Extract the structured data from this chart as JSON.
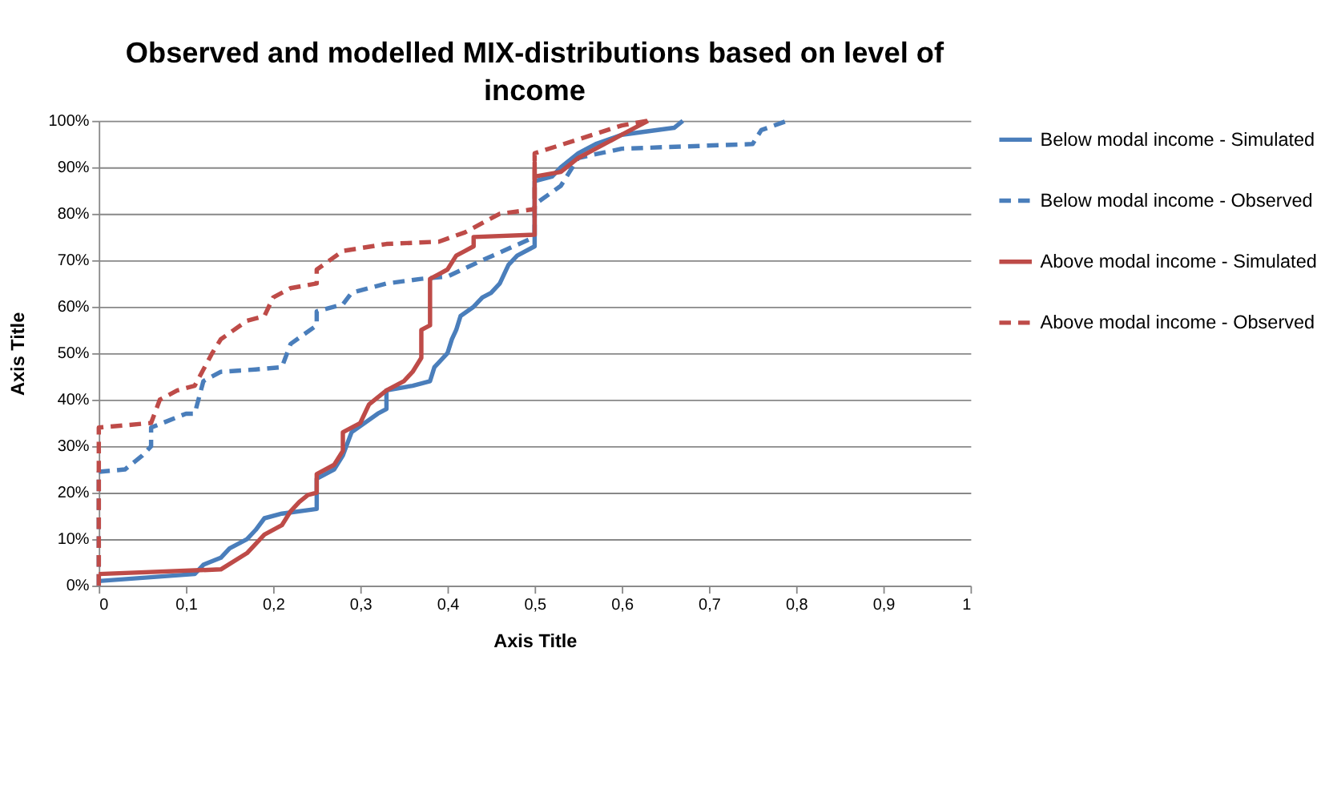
{
  "chart_data": {
    "type": "line",
    "title": "Observed and modelled MIX-distributions based on level of income",
    "xlabel": "Axis Title",
    "ylabel": "Axis Title",
    "xlim": [
      0,
      1
    ],
    "ylim": [
      0,
      100
    ],
    "xticks": [
      {
        "value": 0,
        "label": "0"
      },
      {
        "value": 0.1,
        "label": "0,1"
      },
      {
        "value": 0.2,
        "label": "0,2"
      },
      {
        "value": 0.3,
        "label": "0,3"
      },
      {
        "value": 0.4,
        "label": "0,4"
      },
      {
        "value": 0.5,
        "label": "0,5"
      },
      {
        "value": 0.6,
        "label": "0,6"
      },
      {
        "value": 0.7,
        "label": "0,7"
      },
      {
        "value": 0.8,
        "label": "0,8"
      },
      {
        "value": 0.9,
        "label": "0,9"
      },
      {
        "value": 1,
        "label": "1"
      }
    ],
    "yticks": [
      {
        "value": 0,
        "label": "0%"
      },
      {
        "value": 10,
        "label": "10%"
      },
      {
        "value": 20,
        "label": "20%"
      },
      {
        "value": 30,
        "label": "30%"
      },
      {
        "value": 40,
        "label": "40%"
      },
      {
        "value": 50,
        "label": "50%"
      },
      {
        "value": 60,
        "label": "60%"
      },
      {
        "value": 70,
        "label": "70%"
      },
      {
        "value": 80,
        "label": "80%"
      },
      {
        "value": 90,
        "label": "90%"
      },
      {
        "value": 100,
        "label": "100%"
      }
    ],
    "grid": "y",
    "legend": "right",
    "marker": "none",
    "series": [
      {
        "name": "Below modal income - Simulated",
        "color": "#4a7ebb",
        "line_style": "solid",
        "x": [
          0,
          0.11,
          0.12,
          0.14,
          0.15,
          0.17,
          0.18,
          0.19,
          0.21,
          0.25,
          0.25,
          0.27,
          0.28,
          0.29,
          0.32,
          0.33,
          0.33,
          0.36,
          0.38,
          0.385,
          0.39,
          0.4,
          0.405,
          0.41,
          0.415,
          0.43,
          0.44,
          0.45,
          0.46,
          0.47,
          0.48,
          0.5,
          0.5,
          0.52,
          0.53,
          0.55,
          0.57,
          0.6,
          0.66,
          0.67
        ],
        "values": [
          1,
          2.5,
          4.5,
          6,
          8,
          10,
          12,
          14.5,
          15.5,
          16.5,
          23,
          25,
          28,
          33,
          37,
          38,
          42,
          43,
          44,
          47,
          48,
          50,
          53,
          55,
          58,
          60,
          62,
          63,
          65,
          69,
          71,
          73,
          87,
          88,
          90,
          93,
          95,
          97,
          98.5,
          100
        ]
      },
      {
        "name": "Below modal income - Observed",
        "color": "#4a7ebb",
        "line_style": "dashed",
        "x": [
          0,
          0,
          0.03,
          0.05,
          0.06,
          0.06,
          0.1,
          0.11,
          0.12,
          0.14,
          0.18,
          0.21,
          0.22,
          0.25,
          0.25,
          0.28,
          0.29,
          0.33,
          0.37,
          0.4,
          0.44,
          0.5,
          0.5,
          0.53,
          0.55,
          0.6,
          0.75,
          0.76,
          0.79
        ],
        "values": [
          0,
          24.5,
          25,
          28,
          30,
          34,
          37,
          37,
          44,
          46,
          46.5,
          47,
          52,
          56,
          59,
          60.5,
          63,
          65,
          66,
          66.5,
          70,
          75,
          82,
          86,
          92,
          94,
          95,
          98,
          100
        ]
      },
      {
        "name": "Above modal income - Simulated",
        "color": "#be4b48",
        "line_style": "solid",
        "x": [
          0,
          0.14,
          0.17,
          0.19,
          0.21,
          0.22,
          0.23,
          0.24,
          0.25,
          0.25,
          0.27,
          0.28,
          0.28,
          0.3,
          0.31,
          0.33,
          0.35,
          0.36,
          0.37,
          0.37,
          0.38,
          0.38,
          0.39,
          0.4,
          0.41,
          0.42,
          0.43,
          0.43,
          0.5,
          0.5,
          0.5,
          0.53,
          0.55,
          0.57,
          0.6,
          0.63
        ],
        "values": [
          2.5,
          3.5,
          7,
          11,
          13,
          16,
          18,
          19.5,
          20,
          24,
          26,
          29,
          33,
          35,
          39,
          42,
          44,
          46,
          49,
          55,
          56,
          66,
          67,
          68,
          71,
          72,
          73,
          75,
          75.5,
          91,
          88,
          89,
          92,
          94,
          97,
          100
        ]
      },
      {
        "name": "Above modal income - Observed",
        "color": "#be4b48",
        "line_style": "dashed",
        "x": [
          0,
          0,
          0.06,
          0.07,
          0.09,
          0.11,
          0.13,
          0.14,
          0.17,
          0.19,
          0.2,
          0.22,
          0.25,
          0.25,
          0.28,
          0.33,
          0.39,
          0.42,
          0.46,
          0.5,
          0.5,
          0.55,
          0.6,
          0.63
        ],
        "values": [
          0,
          34,
          35,
          40,
          42,
          43,
          50,
          53,
          57,
          58,
          62,
          64,
          65,
          68,
          72,
          73.5,
          74,
          76,
          80,
          81,
          93,
          96,
          99,
          100
        ]
      }
    ]
  }
}
